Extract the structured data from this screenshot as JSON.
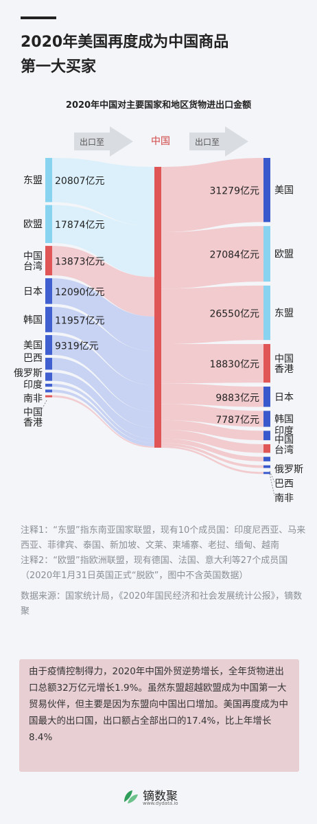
{
  "header": {
    "title_line1": "2020年美国再度成为中国商品",
    "title_line2": "第一大买家"
  },
  "chart_data": {
    "type": "sankey",
    "title": "2020年中国对主要国家和地区货物进出口金额",
    "center": "中国",
    "arrow_left": "出口至",
    "arrow_right": "出口至",
    "unit": "亿元",
    "sources": [
      {
        "name": "东盟",
        "value": 20807,
        "label": "20807亿元",
        "color": "#87d3f0"
      },
      {
        "name": "欧盟",
        "value": 17874,
        "label": "17874亿元",
        "color": "#87d3f0"
      },
      {
        "name": "中国\n台湾",
        "value": 13873,
        "label": "13873亿元",
        "color": "#e05656"
      },
      {
        "name": "日本",
        "value": 12090,
        "label": "12090亿元",
        "color": "#4060d0"
      },
      {
        "name": "韩国",
        "value": 11957,
        "label": "11957亿元",
        "color": "#4060d0"
      },
      {
        "name": "美国",
        "value": 9319,
        "label": "9319亿元",
        "color": "#4060d0"
      },
      {
        "name": "巴西",
        "value": 5600,
        "label": "",
        "color": "#4060d0"
      },
      {
        "name": "俄罗斯",
        "value": 3900,
        "label": "",
        "color": "#4060d0"
      },
      {
        "name": "印度",
        "value": 1400,
        "label": "",
        "color": "#4060d0"
      },
      {
        "name": "南非",
        "value": 1300,
        "label": "",
        "color": "#4060d0"
      },
      {
        "name": "中国\n香港",
        "value": 450,
        "label": "",
        "color": "#e05656"
      }
    ],
    "targets": [
      {
        "name": "美国",
        "value": 31279,
        "label": "31279亿元",
        "color": "#3858cc"
      },
      {
        "name": "欧盟",
        "value": 27084,
        "label": "27084亿元",
        "color": "#87d3f0"
      },
      {
        "name": "东盟",
        "value": 26550,
        "label": "26550亿元",
        "color": "#87d3f0"
      },
      {
        "name": "中国\n香港",
        "value": 18830,
        "label": "18830亿元",
        "color": "#e05656"
      },
      {
        "name": "日本",
        "value": 9883,
        "label": "9883亿元",
        "color": "#3858cc"
      },
      {
        "name": "韩国",
        "value": 7787,
        "label": "7787亿元",
        "color": "#3858cc"
      },
      {
        "name": "印度",
        "value": 4600,
        "label": "",
        "color": "#3858cc"
      },
      {
        "name": "中国\n台湾",
        "value": 4200,
        "label": "",
        "color": "#e05656"
      },
      {
        "name": "俄罗斯",
        "value": 2200,
        "label": "",
        "color": "#3858cc"
      },
      {
        "name": "巴西",
        "value": 1300,
        "label": "",
        "color": "#3858cc"
      },
      {
        "name": "南非",
        "value": 900,
        "label": "",
        "color": "#3858cc"
      }
    ]
  },
  "notes": {
    "note1": "注释1：“东盟”指东南亚国家联盟，现有10个成员国：印度尼西亚、马来西亚、菲律宾、泰国、新加坡、文莱、柬埔寨、老挝、缅甸、越南",
    "note2": "注释2：“欧盟”指欧洲联盟，现有德国、法国、意大利等27个成员国（2020年1月31日英国正式“脱欧”，图中不含英国数据）",
    "source": "数据来源：国家统计局，《2020年国民经济和社会发展统计公报》，镝数聚"
  },
  "summary": "由于疫情控制得力，2020年中国外贸逆势增长，全年货物进出口总额32万亿元增长1.9%。虽然东盟超越欧盟成为中国第一大贸易伙伴，但主要是因为东盟向中国出口增加。美国再度成为中国最大的出口国，出口额占全部出口的17.4%，比上年增长8.4%",
  "footer": {
    "brand": "镝数聚",
    "url": "www.dydata.io"
  }
}
